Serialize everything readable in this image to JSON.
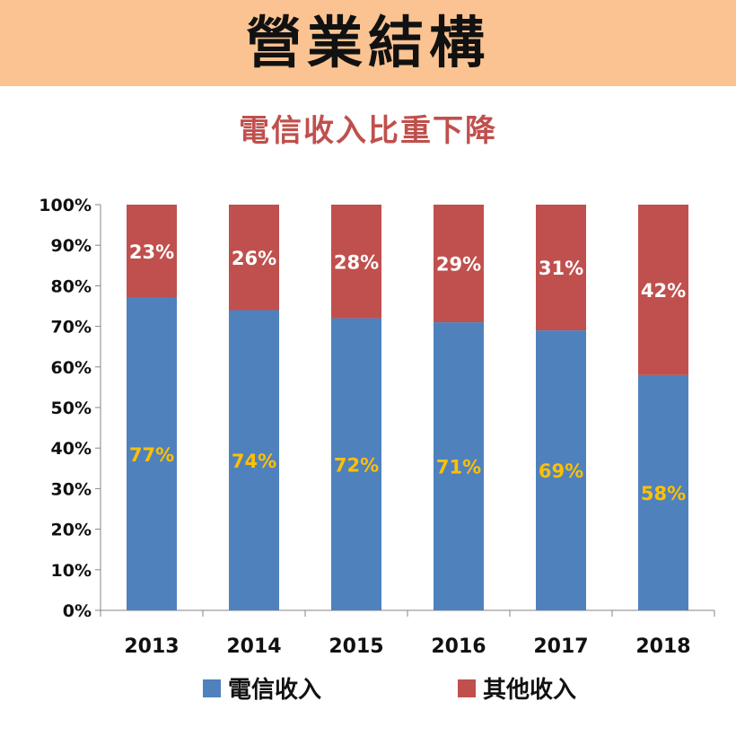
{
  "header": {
    "title": "營業結構"
  },
  "colors": {
    "header_bg": "#fbc392",
    "telecom": "#4f81bd",
    "other": "#c0504d",
    "telecom_label": "#ffc000",
    "other_label": "#ffffff",
    "subtitle": "#c0504d"
  },
  "chart_data": {
    "type": "bar",
    "stacked": true,
    "percent": true,
    "title": "電信收入比重下降",
    "xlabel": "",
    "ylabel": "",
    "categories": [
      "2013",
      "2014",
      "2015",
      "2016",
      "2017",
      "2018"
    ],
    "ylim": [
      0,
      100
    ],
    "yticks": [
      "0%",
      "10%",
      "20%",
      "30%",
      "40%",
      "50%",
      "60%",
      "70%",
      "80%",
      "90%",
      "100%"
    ],
    "series": [
      {
        "name": "電信收入",
        "values": [
          77,
          74,
          72,
          71,
          69,
          58
        ],
        "labels": [
          "77%",
          "74%",
          "72%",
          "71%",
          "69%",
          "58%"
        ]
      },
      {
        "name": "其他收入",
        "values": [
          23,
          26,
          28,
          29,
          31,
          42
        ],
        "labels": [
          "23%",
          "26%",
          "28%",
          "29%",
          "31%",
          "42%"
        ]
      }
    ],
    "legend_position": "bottom",
    "grid": false
  }
}
